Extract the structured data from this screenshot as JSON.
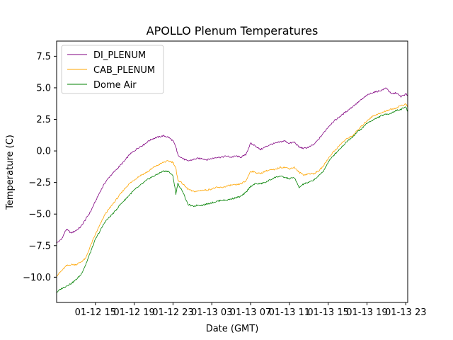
{
  "chart_data": {
    "type": "line",
    "title": "APOLLO Plenum Temperatures",
    "xlabel": "Date (GMT)",
    "ylabel": "Temperature (C)",
    "x_unit": "hours since 01-12 11:00 GMT",
    "xlim": [
      0,
      36.2
    ],
    "ylim": [
      -12.0,
      8.7
    ],
    "x_ticks": [
      {
        "value": 4,
        "label": "01-12 15"
      },
      {
        "value": 8,
        "label": "01-12 19"
      },
      {
        "value": 12,
        "label": "01-12 23"
      },
      {
        "value": 16,
        "label": "01-13 03"
      },
      {
        "value": 20,
        "label": "01-13 07"
      },
      {
        "value": 24,
        "label": "01-13 11"
      },
      {
        "value": 28,
        "label": "01-13 15"
      },
      {
        "value": 32,
        "label": "01-13 19"
      },
      {
        "value": 36,
        "label": "01-13 23"
      }
    ],
    "y_ticks": [
      {
        "value": -10.0,
        "label": "−10.0"
      },
      {
        "value": -7.5,
        "label": "−7.5"
      },
      {
        "value": -5.0,
        "label": "−5.0"
      },
      {
        "value": -2.5,
        "label": "−2.5"
      },
      {
        "value": 0.0,
        "label": "0.0"
      },
      {
        "value": 2.5,
        "label": "2.5"
      },
      {
        "value": 5.0,
        "label": "5.0"
      },
      {
        "value": 7.5,
        "label": "7.5"
      }
    ],
    "legend_position": "top-left",
    "series": [
      {
        "name": "DI_PLENUM",
        "color": "#800080",
        "x": [
          0,
          0.5,
          1.0,
          1.5,
          2.0,
          2.5,
          3.0,
          3.5,
          4.0,
          4.5,
          5.0,
          5.5,
          6.0,
          6.5,
          7.0,
          7.5,
          8.0,
          8.5,
          9.0,
          9.5,
          10.0,
          10.5,
          11.0,
          11.5,
          12.0,
          12.3,
          12.5,
          13.0,
          13.5,
          14.0,
          14.5,
          15.0,
          15.5,
          16.0,
          16.5,
          17.0,
          17.5,
          18.0,
          18.5,
          19.0,
          19.5,
          20.0,
          20.5,
          21.0,
          21.5,
          22.0,
          22.5,
          23.0,
          23.5,
          24.0,
          24.5,
          25.0,
          25.5,
          26.0,
          26.5,
          27.0,
          27.5,
          28.0,
          28.5,
          29.0,
          29.5,
          30.0,
          30.5,
          31.0,
          31.5,
          32.0,
          32.5,
          33.0,
          33.5,
          34.0,
          34.5,
          35.0,
          35.5,
          36.0,
          36.2
        ],
        "values": [
          -7.3,
          -7.0,
          -6.2,
          -6.5,
          -6.3,
          -6.0,
          -5.4,
          -4.8,
          -4.0,
          -3.2,
          -2.5,
          -2.0,
          -1.6,
          -1.2,
          -0.8,
          -0.3,
          0.0,
          0.3,
          0.5,
          0.8,
          1.0,
          1.1,
          1.2,
          1.1,
          0.8,
          0.3,
          -0.3,
          -0.6,
          -0.8,
          -0.7,
          -0.6,
          -0.6,
          -0.7,
          -0.6,
          -0.5,
          -0.5,
          -0.4,
          -0.5,
          -0.4,
          -0.5,
          -0.3,
          0.6,
          0.4,
          0.1,
          0.3,
          0.5,
          0.6,
          0.7,
          0.8,
          0.6,
          0.7,
          0.3,
          0.2,
          0.3,
          0.5,
          0.9,
          1.4,
          1.9,
          2.3,
          2.6,
          2.9,
          3.2,
          3.5,
          3.8,
          4.1,
          4.4,
          4.6,
          4.7,
          4.8,
          5.0,
          4.5,
          4.6,
          4.3,
          4.5,
          4.4
        ]
      },
      {
        "name": "CAB_PLENUM",
        "color": "#ffa500",
        "x": [
          0,
          0.5,
          1.0,
          1.5,
          2.0,
          2.5,
          3.0,
          3.5,
          4.0,
          4.5,
          5.0,
          5.5,
          6.0,
          6.5,
          7.0,
          7.5,
          8.0,
          8.5,
          9.0,
          9.5,
          10.0,
          10.5,
          11.0,
          11.5,
          12.0,
          12.3,
          12.5,
          13.0,
          13.5,
          14.0,
          14.5,
          15.0,
          15.5,
          16.0,
          16.5,
          17.0,
          17.5,
          18.0,
          18.5,
          19.0,
          19.5,
          20.0,
          20.5,
          21.0,
          21.5,
          22.0,
          22.5,
          23.0,
          23.5,
          24.0,
          24.5,
          25.0,
          25.5,
          26.0,
          26.5,
          27.0,
          27.5,
          28.0,
          28.5,
          29.0,
          29.5,
          30.0,
          30.5,
          31.0,
          31.5,
          32.0,
          32.5,
          33.0,
          33.5,
          34.0,
          34.5,
          35.0,
          35.5,
          36.0,
          36.2
        ],
        "values": [
          -9.9,
          -9.5,
          -9.1,
          -9.0,
          -9.0,
          -8.8,
          -8.5,
          -7.5,
          -6.6,
          -5.8,
          -5.0,
          -4.5,
          -4.0,
          -3.5,
          -3.0,
          -2.6,
          -2.3,
          -2.0,
          -1.8,
          -1.6,
          -1.3,
          -1.1,
          -0.9,
          -0.8,
          -0.9,
          -1.4,
          -2.3,
          -2.6,
          -3.0,
          -3.2,
          -3.2,
          -3.1,
          -3.1,
          -3.0,
          -2.9,
          -2.9,
          -2.8,
          -2.7,
          -2.7,
          -2.6,
          -2.4,
          -1.6,
          -1.7,
          -1.8,
          -1.6,
          -1.5,
          -1.5,
          -1.3,
          -1.3,
          -1.4,
          -1.3,
          -1.7,
          -1.9,
          -1.8,
          -1.8,
          -1.6,
          -1.2,
          -0.6,
          -0.1,
          0.3,
          0.7,
          1.0,
          1.2,
          1.6,
          2.0,
          2.4,
          2.7,
          2.9,
          3.0,
          3.2,
          3.3,
          3.4,
          3.6,
          3.7,
          3.5
        ]
      },
      {
        "name": "Dome Air",
        "color": "#008000",
        "x": [
          0,
          0.5,
          1.0,
          1.5,
          2.0,
          2.5,
          3.0,
          3.5,
          4.0,
          4.5,
          5.0,
          5.5,
          6.0,
          6.5,
          7.0,
          7.5,
          8.0,
          8.5,
          9.0,
          9.5,
          10.0,
          10.5,
          11.0,
          11.5,
          12.0,
          12.3,
          12.5,
          13.0,
          13.5,
          14.0,
          14.5,
          15.0,
          15.5,
          16.0,
          16.5,
          17.0,
          17.5,
          18.0,
          18.5,
          19.0,
          19.5,
          20.0,
          20.5,
          21.0,
          21.5,
          22.0,
          22.5,
          23.0,
          23.5,
          24.0,
          24.5,
          25.0,
          25.5,
          26.0,
          26.5,
          27.0,
          27.5,
          28.0,
          28.5,
          29.0,
          29.5,
          30.0,
          30.5,
          31.0,
          31.5,
          32.0,
          32.5,
          33.0,
          33.5,
          34.0,
          34.5,
          35.0,
          35.5,
          36.0,
          36.2
        ],
        "values": [
          -11.2,
          -10.9,
          -10.7,
          -10.5,
          -10.2,
          -9.8,
          -9.0,
          -8.0,
          -7.0,
          -6.3,
          -5.6,
          -5.2,
          -4.8,
          -4.3,
          -3.9,
          -3.5,
          -3.1,
          -2.8,
          -2.5,
          -2.2,
          -2.0,
          -1.8,
          -1.6,
          -1.6,
          -2.0,
          -3.4,
          -2.6,
          -3.2,
          -4.2,
          -4.4,
          -4.3,
          -4.3,
          -4.2,
          -4.1,
          -4.0,
          -3.9,
          -3.9,
          -3.8,
          -3.7,
          -3.6,
          -3.3,
          -2.8,
          -2.6,
          -2.6,
          -2.5,
          -2.3,
          -2.1,
          -2.0,
          -2.1,
          -2.2,
          -2.1,
          -2.9,
          -2.6,
          -2.5,
          -2.3,
          -2.0,
          -1.6,
          -0.9,
          -0.4,
          0.0,
          0.4,
          0.8,
          1.1,
          1.5,
          1.8,
          2.2,
          2.4,
          2.6,
          2.8,
          2.9,
          3.0,
          3.2,
          3.3,
          3.5,
          3.1
        ]
      }
    ]
  }
}
